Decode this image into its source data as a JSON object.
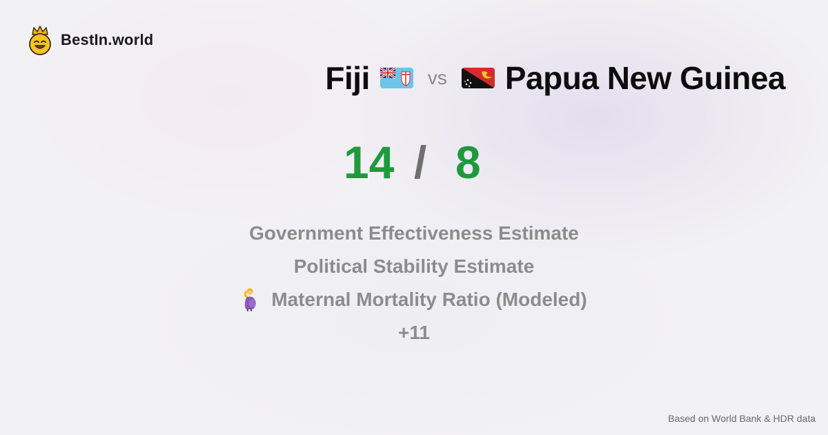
{
  "brand": {
    "name": "BestIn.world",
    "logo_icon": "crowned-smiley-icon"
  },
  "comparison": {
    "left_country": "Fiji",
    "left_flag": "fiji-flag-icon",
    "vs_label": "vs",
    "right_country": "Papua New Guinea",
    "right_flag": "papua-new-guinea-flag-icon"
  },
  "score": {
    "left": "14",
    "separator": "/",
    "right": "8"
  },
  "metrics": [
    {
      "label": "Government Effectiveness Estimate"
    },
    {
      "label": "Political Stability Estimate"
    },
    {
      "label": "Maternal Mortality Ratio (Modeled)",
      "icon": "pregnant-woman-icon"
    }
  ],
  "more_label": "+11",
  "footer": {
    "source": "Based on World Bank & HDR data"
  },
  "colors": {
    "score": "#1e9a3c",
    "muted": "#8c8c8c",
    "title": "#0d0d0d"
  }
}
